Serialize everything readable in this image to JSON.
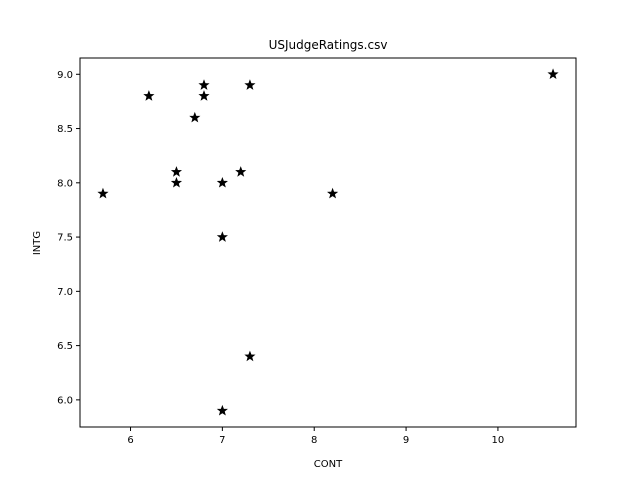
{
  "chart_data": {
    "type": "scatter",
    "title": "USJudgeRatings.csv",
    "xlabel": "CONT",
    "ylabel": "INTG",
    "xlim": [
      5.45,
      10.85
    ],
    "ylim": [
      5.75,
      9.15
    ],
    "xticks": [
      6,
      7,
      8,
      9,
      10
    ],
    "yticks": [
      6.0,
      6.5,
      7.0,
      7.5,
      8.0,
      8.5,
      9.0
    ],
    "xtick_labels": [
      "6",
      "7",
      "8",
      "9",
      "10"
    ],
    "ytick_labels": [
      "6.0",
      "6.5",
      "7.0",
      "7.5",
      "8.0",
      "8.5",
      "9.0"
    ],
    "marker": "star",
    "marker_color": "#000000",
    "grid": false,
    "points": [
      {
        "x": 5.7,
        "y": 7.9
      },
      {
        "x": 6.2,
        "y": 8.8
      },
      {
        "x": 6.5,
        "y": 8.1
      },
      {
        "x": 6.5,
        "y": 8.0
      },
      {
        "x": 6.7,
        "y": 8.6
      },
      {
        "x": 6.8,
        "y": 8.9
      },
      {
        "x": 6.8,
        "y": 8.8
      },
      {
        "x": 7.0,
        "y": 8.0
      },
      {
        "x": 7.0,
        "y": 7.5
      },
      {
        "x": 7.0,
        "y": 5.9
      },
      {
        "x": 7.2,
        "y": 8.1
      },
      {
        "x": 7.3,
        "y": 8.9
      },
      {
        "x": 7.3,
        "y": 6.4
      },
      {
        "x": 8.2,
        "y": 7.9
      },
      {
        "x": 10.6,
        "y": 9.0
      }
    ]
  }
}
